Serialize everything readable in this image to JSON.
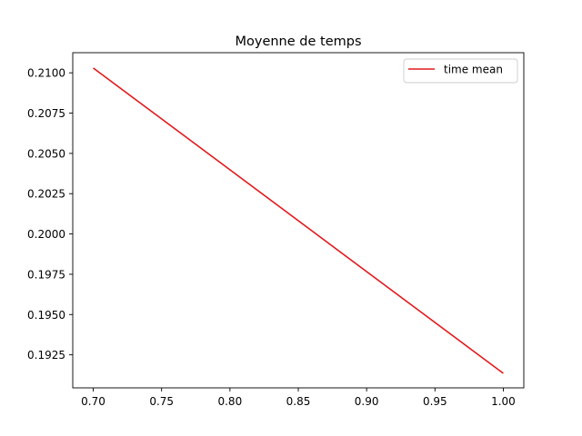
{
  "chart_data": {
    "type": "line",
    "title": "Moyenne de temps",
    "xlabel": "",
    "ylabel": "",
    "xlim": [
      0.685,
      1.015
    ],
    "ylim": [
      0.19045,
      0.21125
    ],
    "x_ticks": [
      0.7,
      0.75,
      0.8,
      0.85,
      0.9,
      0.95,
      1.0
    ],
    "x_tick_labels": [
      "0.70",
      "0.75",
      "0.80",
      "0.85",
      "0.90",
      "0.95",
      "1.00"
    ],
    "y_ticks": [
      0.1925,
      0.195,
      0.1975,
      0.2,
      0.2025,
      0.205,
      0.2075,
      0.21
    ],
    "y_tick_labels": [
      "0.1925",
      "0.1950",
      "0.1975",
      "0.2000",
      "0.2025",
      "0.2050",
      "0.2075",
      "0.2100"
    ],
    "grid": false,
    "legend_position": "top-right",
    "series": [
      {
        "name": "time mean",
        "color": "#e31a1c",
        "x": [
          0.7,
          1.0
        ],
        "y": [
          0.2103,
          0.19135
        ]
      }
    ]
  }
}
